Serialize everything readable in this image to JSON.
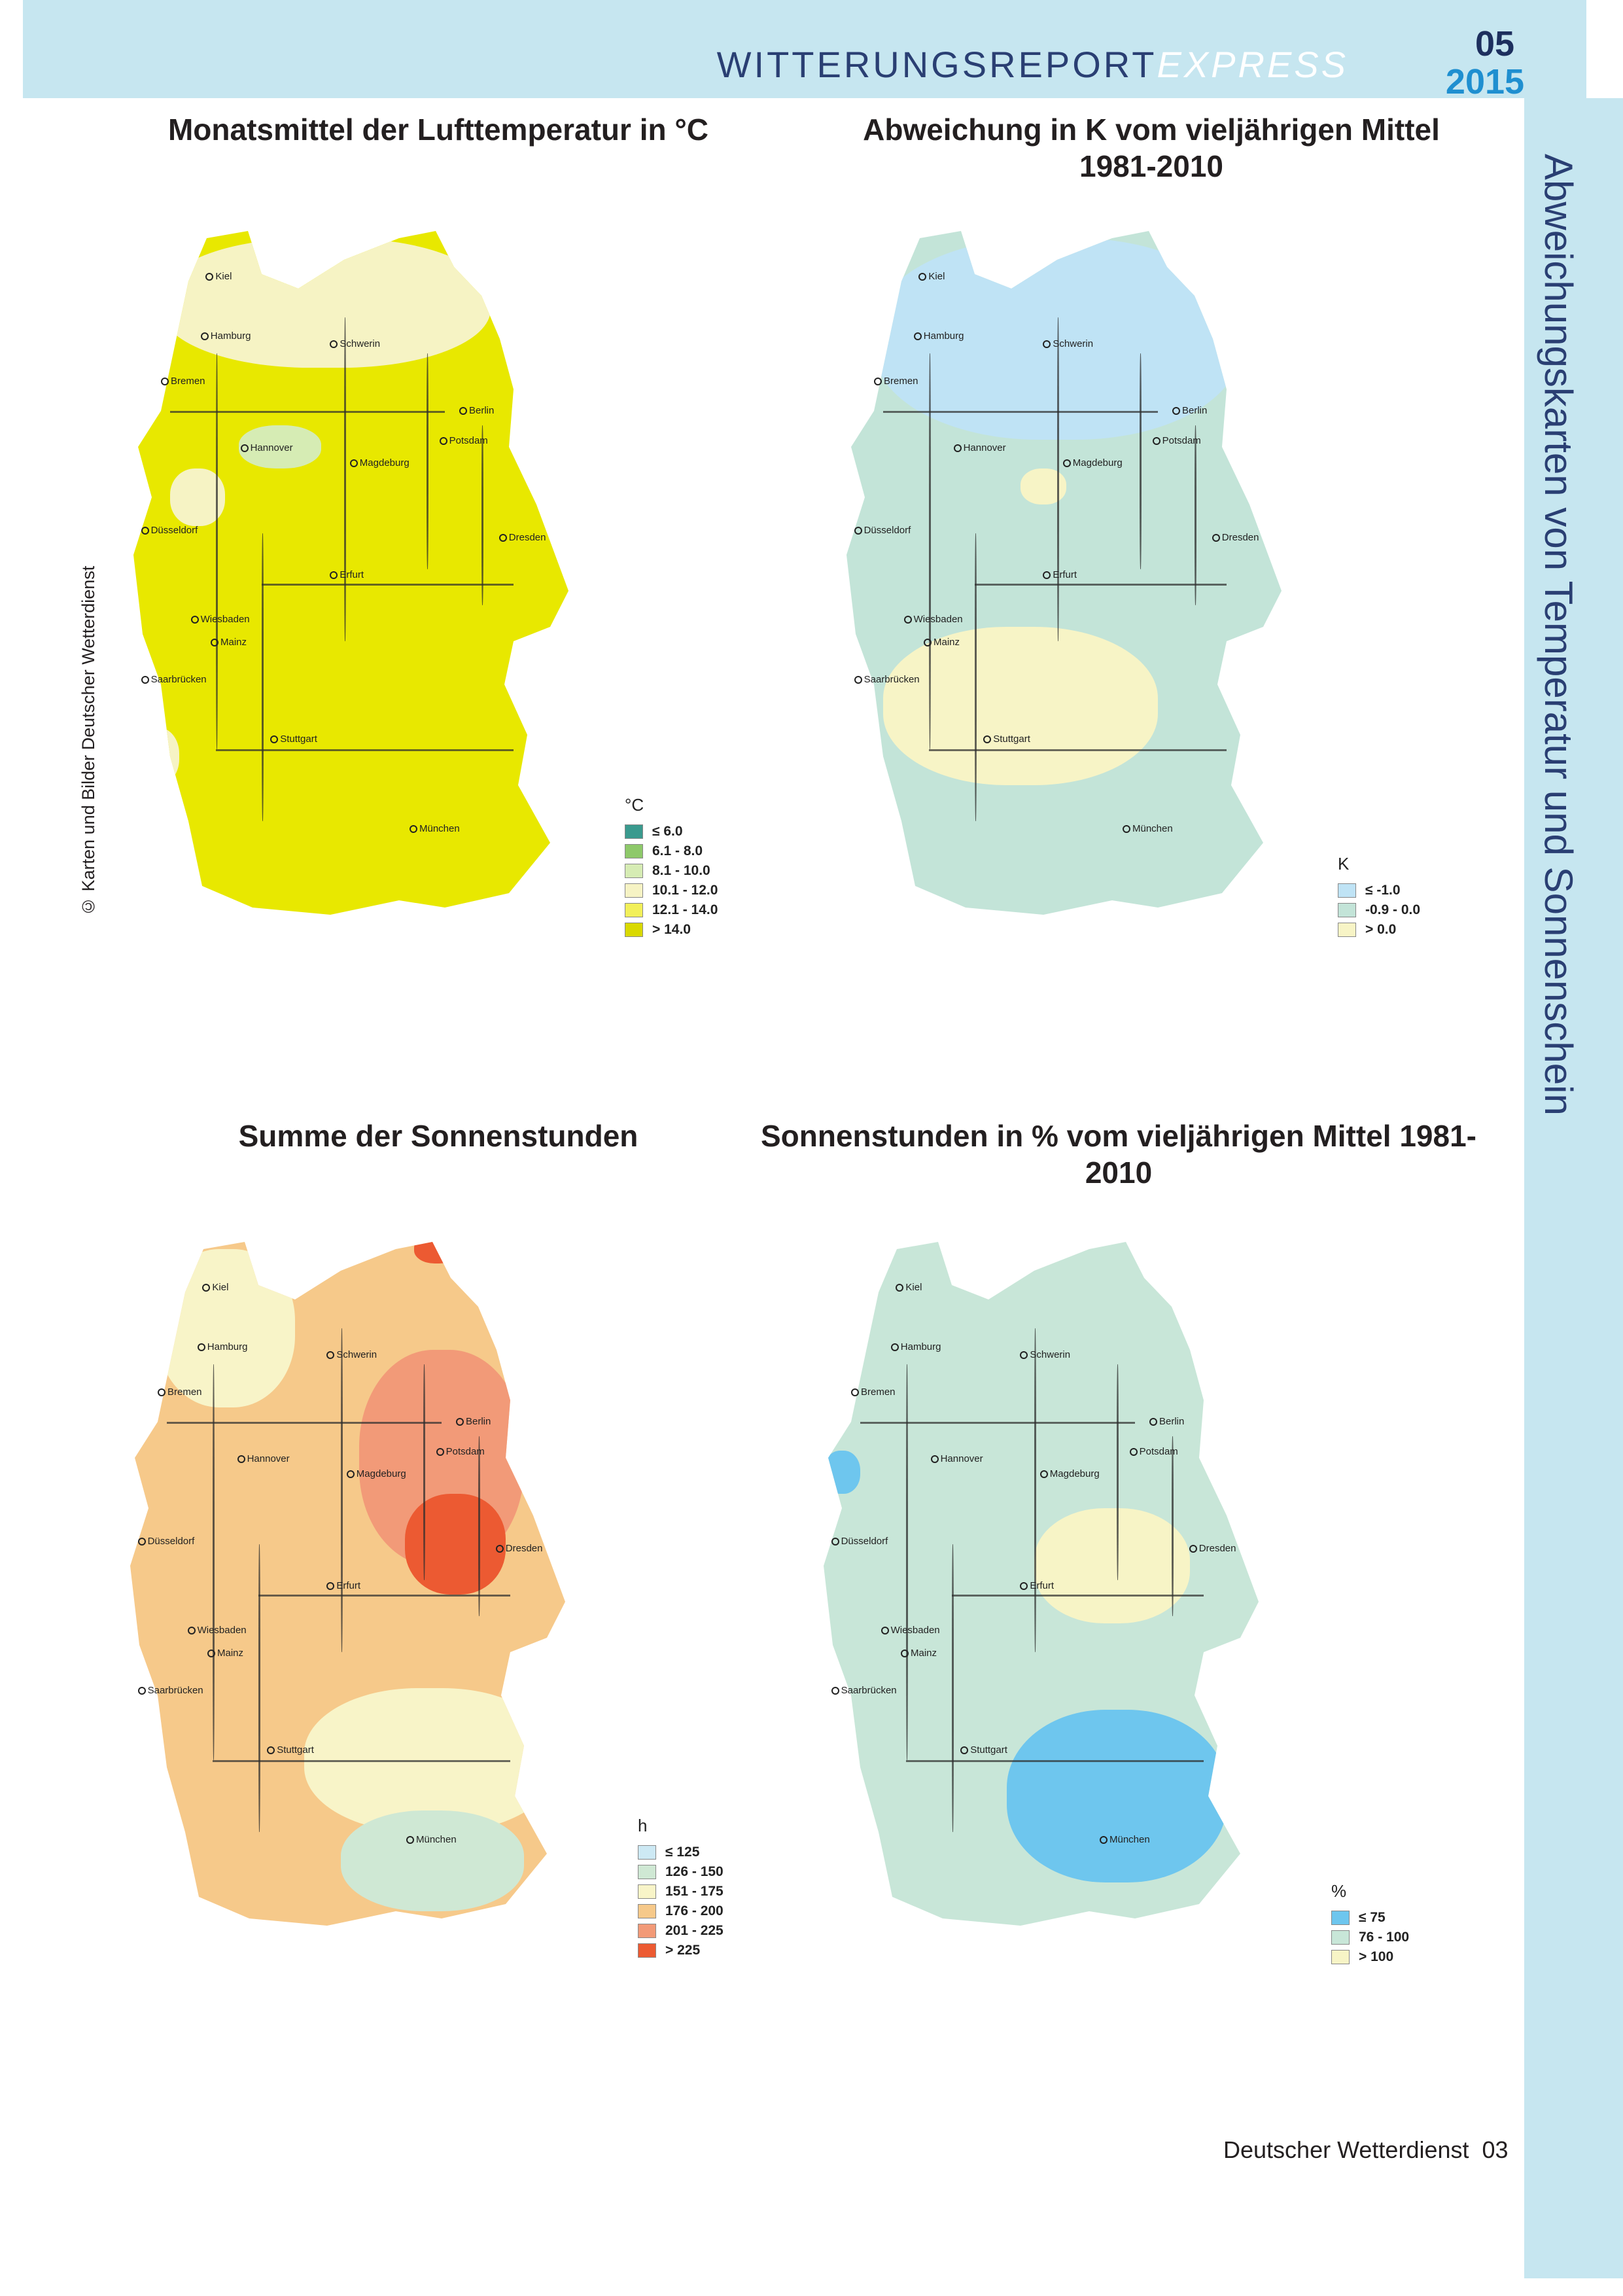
{
  "header": {
    "brand_main": "WITTERUNGSREPORT",
    "brand_sub": "EXPRESS",
    "issue_number": "05",
    "issue_year": "2015"
  },
  "side_title": "Abweichungskarten von Temperatur und Sonnenschein",
  "copyright": "© Karten und Bilder Deutscher Wetterdienst",
  "footer": {
    "publisher": "Deutscher Wetterdienst",
    "page": "03"
  },
  "cities": {
    "kiel": "Kiel",
    "hamburg": "Hamburg",
    "schwerin": "Schwerin",
    "bremen": "Bremen",
    "berlin": "Berlin",
    "potsdam": "Potsdam",
    "hannover": "Hannover",
    "magdeburg": "Magdeburg",
    "duesseldorf": "Düsseldorf",
    "dresden": "Dresden",
    "erfurt": "Erfurt",
    "wiesbaden": "Wiesbaden",
    "mainz": "Mainz",
    "saarbruecken": "Saarbrücken",
    "stuttgart": "Stuttgart",
    "muenchen": "München"
  },
  "maps": [
    {
      "title": "Monatsmittel der Lufttemperatur in °C",
      "fill": "#e8e800",
      "legend": {
        "unit": "°C",
        "items": [
          {
            "label": "≤ 6.0",
            "color": "#3a9a8e"
          },
          {
            "label": "6.1 - 8.0",
            "color": "#8ec96a"
          },
          {
            "label": "8.1 - 10.0",
            "color": "#d6ecb4"
          },
          {
            "label": "10.1 - 12.0",
            "color": "#f6f3c4"
          },
          {
            "label": "12.1 - 14.0",
            "color": "#f2f05a"
          },
          {
            "label": "> 14.0",
            "color": "#d9d900"
          }
        ]
      }
    },
    {
      "title": "Abweichung in K vom vieljährigen Mittel 1981-2010",
      "fill": "#c3e4d8",
      "legend": {
        "unit": "K",
        "items": [
          {
            "label": "≤ -1.0",
            "color": "#bfe3f5"
          },
          {
            "label": "-0.9 - 0.0",
            "color": "#c3e4d8"
          },
          {
            "label": "> 0.0",
            "color": "#f7f4c6"
          }
        ]
      }
    },
    {
      "title": "Summe der Sonnenstunden",
      "fill": "#f6c98a",
      "legend": {
        "unit": "h",
        "items": [
          {
            "label": "≤ 125",
            "color": "#cde9f4"
          },
          {
            "label": "126 - 150",
            "color": "#cfe8d4"
          },
          {
            "label": "151 - 175",
            "color": "#f8f4c8"
          },
          {
            "label": "176 - 200",
            "color": "#f6c98a"
          },
          {
            "label": "201 - 225",
            "color": "#f29a78"
          },
          {
            "label": "> 225",
            "color": "#ec5a32"
          }
        ]
      }
    },
    {
      "title": "Sonnenstunden in % vom vieljährigen Mittel 1981-2010",
      "fill": "#c8e6d8",
      "legend": {
        "unit": "%",
        "items": [
          {
            "label": "≤ 75",
            "color": "#6ec6ee"
          },
          {
            "label": "76 - 100",
            "color": "#c8e6d8"
          },
          {
            "label": "> 100",
            "color": "#f7f4c6"
          }
        ]
      }
    }
  ]
}
